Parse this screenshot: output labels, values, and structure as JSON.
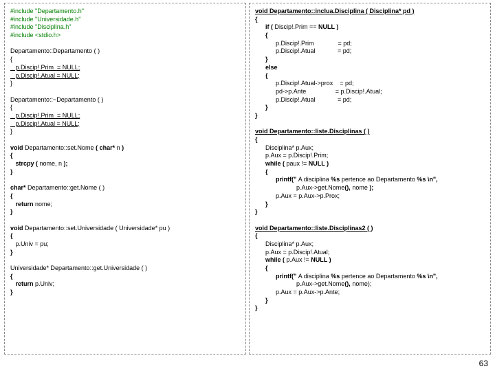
{
  "pageNumber": "63",
  "left": {
    "inc1": "#include \"Departamento.h\"",
    "inc2": "#include \"Universidade.h\"",
    "inc3": "#include \"Disciplina.h\"",
    "inc4": "#include <stdio.h>",
    "ctor1": "Departamento::Departamento ( )",
    "ctor2": "{",
    "ctor3": "   p.Discip!.Prim  = NULL;",
    "ctor4": "   p.Discip!.Atual = NULL;",
    "ctor5": "}",
    "dtor1": "Departamento::~Departamento ( )",
    "dtor2": "{",
    "dtor3": "   p.Discip!.Prim  = NULL;",
    "dtor4": "   p.Discip!.Atual = NULL;",
    "dtor5": "}",
    "sn1a": "void",
    "sn1b": " Departamento::set.Nome ",
    "sn1c": "( char* ",
    "sn1d": "n ",
    "sn1e": ")",
    "sn2": "{",
    "sn3a": "   strcpy ( ",
    "sn3b": "nome, n ",
    "sn3c": ");",
    "sn4": "}",
    "gn1a": "char* ",
    "gn1b": "Departamento::get.Nome ( )",
    "gn2": "{",
    "gn3a": "   return ",
    "gn3b": "nome;",
    "gn4": "}",
    "su1a": "void",
    "su1b": " Departamento::set.Universidade ( Universidade* pu )",
    "su2": "{",
    "su3": "   p.Univ = pu;",
    "su4": "}",
    "gu1": "Universidade* Departamento::get.Universidade ( )",
    "gu2": "{",
    "gu3a": "   return ",
    "gu3b": "p.Univ;",
    "gu4": "}"
  },
  "right": {
    "id1": "void Departamento::inclua.Disciplina ( Disciplina* pd )",
    "id2": "{",
    "id3a": "      if ( ",
    "id3b": "Discip!.Prim == ",
    "id3c": "NULL )",
    "id4": "      {",
    "id5": "            p.Discip!.Prim              = pd;",
    "id6": "            p.Discip!.Atual             = pd;",
    "id7": "      }",
    "id8": "      else",
    "id9": "      {",
    "id10": "            p.Discip!.Atual->prox    = pd;",
    "id11": "            pd->p.Ante                 = p.Discip!.Atual;",
    "id12": "            p.Discip!.Atual             = pd;",
    "id13": "      }",
    "id14": "}",
    "ld1": "void Departamento::liste.Disciplinas ( )",
    "ld2": "{",
    "ld3": "      Disciplina* p.Aux;",
    "ld4": "      p.Aux = p.Discip!.Prim;",
    "ld5a": "      while ( ",
    "ld5b": "paux != ",
    "ld5c": "NULL )",
    "ld6": "      {",
    "ld7a": "            printf(\" ",
    "ld7b": "A disciplina ",
    "ld7c": "%s ",
    "ld7d": "pertence ao Departamento ",
    "ld7e": "%s \\n\",",
    "ld8a": "                        p.Aux->get.Nome",
    "ld8b": "(), ",
    "ld8c": "nome ",
    "ld8d": ");",
    "ld9": "            p.Aux = p.Aux->p.Prox;",
    "ld10": "      }",
    "ld11": "}",
    "ld2_1": "void Departamento::liste.Disciplinas2 ( )",
    "ld2_2": "{",
    "ld2_3": "      Disciplina* p.Aux;",
    "ld2_4": "      p.Aux = p.Discip!.Atual;",
    "ld2_5a": "      while ( ",
    "ld2_5b": "p.Aux != ",
    "ld2_5c": "NULL )",
    "ld2_6": "      {",
    "ld2_7a": "            printf(\" ",
    "ld2_7b": "A disciplina ",
    "ld2_7c": "%s ",
    "ld2_7d": "pertence ao Departamento ",
    "ld2_7e": "%s \\n\",",
    "ld2_8a": "                        p.Aux->get.Nome",
    "ld2_8b": "(), ",
    "ld2_8c": "nome);",
    "ld2_9": "            p.Aux = p.Aux->p.Ante;",
    "ld2_10": "      }",
    "ld2_11": "}"
  }
}
